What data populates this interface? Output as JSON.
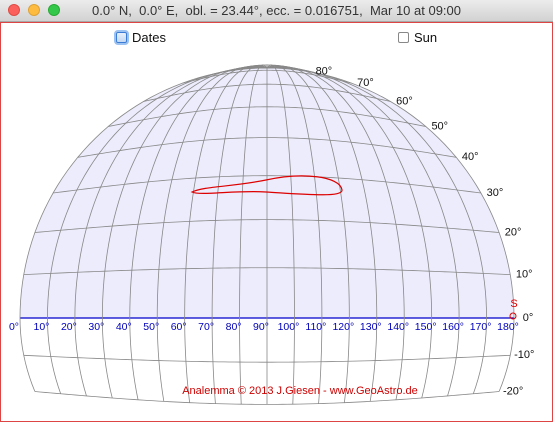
{
  "window": {
    "title": "0.0° N,  0.0° E,  obl. = 23.44°, ecc. = 0.016751,  Mar 10 at 09:00"
  },
  "controls": [
    {
      "label": "Dates",
      "checked": true
    },
    {
      "label": "Sun",
      "checked": false
    }
  ],
  "sky": {
    "altitudes": [
      {
        "value": 80,
        "label": "80°"
      },
      {
        "value": 70,
        "label": "70°"
      },
      {
        "value": 60,
        "label": "60°"
      },
      {
        "value": 50,
        "label": "50°"
      },
      {
        "value": 40,
        "label": "40°"
      },
      {
        "value": 30,
        "label": "30°"
      },
      {
        "value": 20,
        "label": "20°"
      },
      {
        "value": 10,
        "label": "10°"
      },
      {
        "value": 0,
        "label": "0°"
      },
      {
        "value": -10,
        "label": "-10°"
      },
      {
        "value": -20,
        "label": "-20°"
      }
    ],
    "azimuths": [
      {
        "value": 0,
        "label": "0°"
      },
      {
        "value": 10,
        "label": "10°"
      },
      {
        "value": 20,
        "label": "20°"
      },
      {
        "value": 30,
        "label": "30°"
      },
      {
        "value": 40,
        "label": "40°"
      },
      {
        "value": 50,
        "label": "50°"
      },
      {
        "value": 60,
        "label": "60°"
      },
      {
        "value": 70,
        "label": "70°"
      },
      {
        "value": 80,
        "label": "80°"
      },
      {
        "value": 90,
        "label": "90°"
      },
      {
        "value": 100,
        "label": "100°"
      },
      {
        "value": 110,
        "label": "110°"
      },
      {
        "value": 120,
        "label": "120°"
      },
      {
        "value": 130,
        "label": "130°"
      },
      {
        "value": 140,
        "label": "140°"
      },
      {
        "value": 150,
        "label": "150°"
      },
      {
        "value": 160,
        "label": "160°"
      },
      {
        "value": 170,
        "label": "170°"
      },
      {
        "value": 180,
        "label": "180°"
      }
    ],
    "south_label": "S",
    "credit": "Analemma  © 2013 J.Giesen - www.GeoAstro.de"
  }
}
